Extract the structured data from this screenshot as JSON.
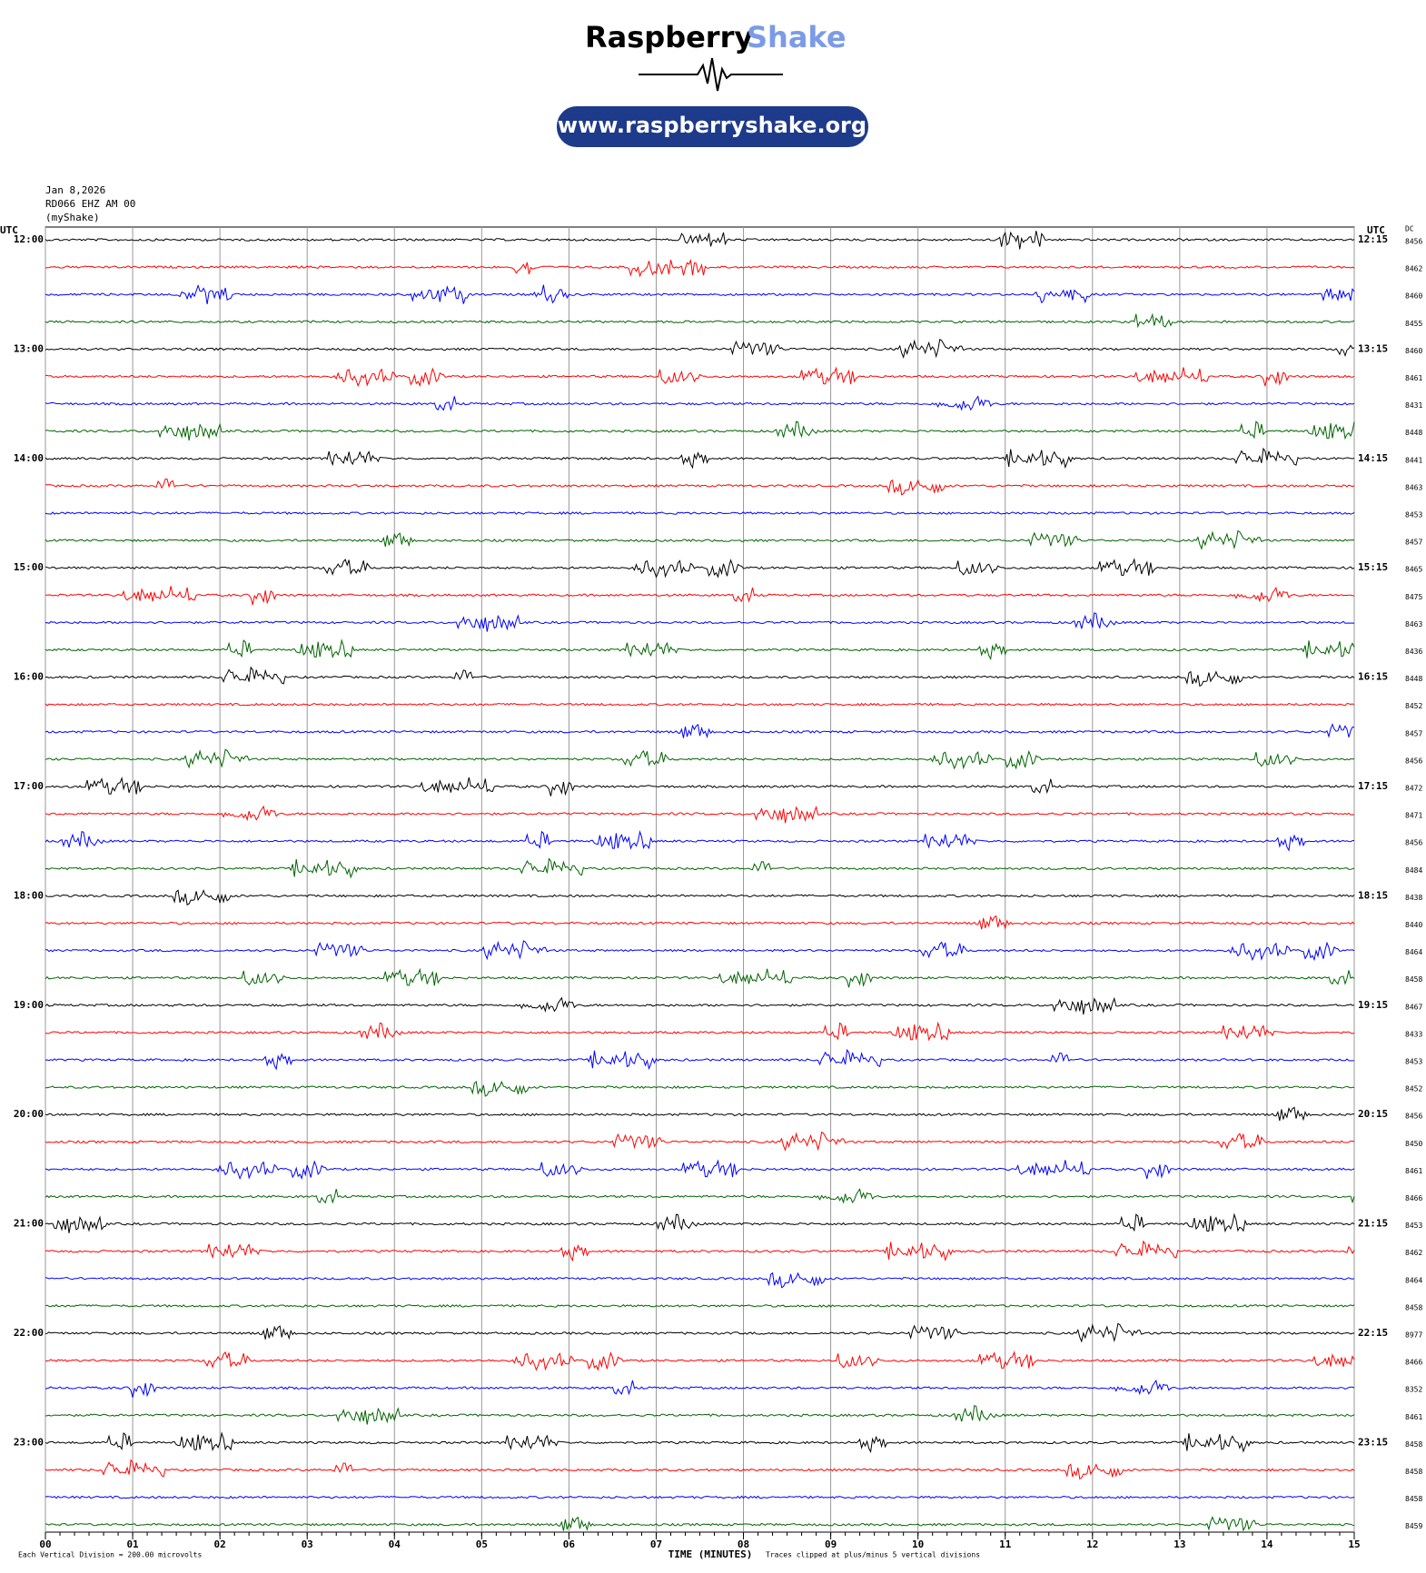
{
  "chart_data": {
    "type": "helicorder",
    "brand": "Raspberry",
    "brand_accent": "Shake",
    "url": "www.raspberryshake.org",
    "date": "Jan 8,2026",
    "station": "RD066 EHZ AM 00",
    "source": "(myShake)",
    "left_axis_label": "UTC",
    "right_axis_label": "UTC",
    "dc_label": "DC",
    "left_times": [
      "12:00",
      "13:00",
      "14:00",
      "15:00",
      "16:00",
      "17:00",
      "18:00",
      "19:00",
      "20:00",
      "21:00",
      "22:00",
      "23:00"
    ],
    "right_times": [
      "12:15",
      "13:15",
      "14:15",
      "15:15",
      "16:15",
      "17:15",
      "18:15",
      "19:15",
      "20:15",
      "21:15",
      "22:15",
      "23:15"
    ],
    "dc_values": [
      8456,
      8462,
      8460,
      8455,
      8460,
      8461,
      8431,
      8448,
      8441,
      8463,
      8453,
      8457,
      8465,
      8475,
      8463,
      8436,
      8448,
      8452,
      8457,
      8456,
      8472,
      8471,
      8456,
      8484,
      8438,
      8440,
      8464,
      8458,
      8467,
      8433,
      8453,
      8452,
      8456,
      8450,
      8461,
      8466,
      8453,
      8462,
      8464,
      8458,
      8977,
      8466,
      8352,
      8461,
      8458,
      8458,
      8458,
      8459
    ],
    "trace_colors": [
      "#000000",
      "#ff0000",
      "#0000ff",
      "#006400"
    ],
    "xlim": [
      0,
      15
    ],
    "xticks": [
      {
        "value": 0,
        "label": "00"
      },
      {
        "value": 1,
        "label": "01"
      },
      {
        "value": 2,
        "label": "02"
      },
      {
        "value": 3,
        "label": "03"
      },
      {
        "value": 4,
        "label": "04"
      },
      {
        "value": 5,
        "label": "05"
      },
      {
        "value": 6,
        "label": "06"
      },
      {
        "value": 7,
        "label": "07"
      },
      {
        "value": 8,
        "label": "08"
      },
      {
        "value": 9,
        "label": "09"
      },
      {
        "value": 10,
        "label": "10"
      },
      {
        "value": 11,
        "label": "11"
      },
      {
        "value": 12,
        "label": "12"
      },
      {
        "value": 13,
        "label": "13"
      },
      {
        "value": 14,
        "label": "14"
      },
      {
        "value": 15,
        "label": "15"
      }
    ],
    "xlabel": "TIME (MINUTES)",
    "scale_note": "Each Vertical Division = 200.00 microvolts",
    "clip_note": "Traces clipped at plus/minus 5 vertical divisions"
  }
}
